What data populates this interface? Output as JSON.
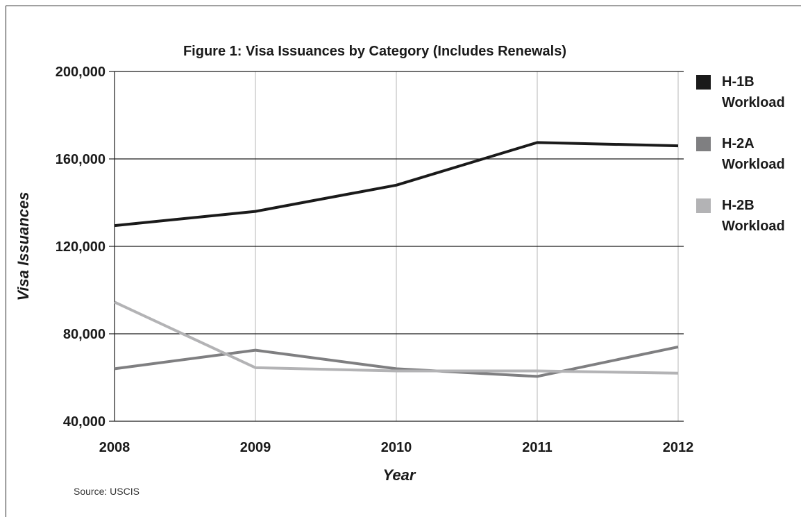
{
  "chart_data": {
    "type": "line",
    "title": "Figure 1: Visa Issuances by Category (Includes Renewals)",
    "xlabel": "Year",
    "ylabel": "Visa Issuances",
    "source": "Source: USCIS",
    "x": [
      "2008",
      "2009",
      "2010",
      "2011",
      "2012"
    ],
    "y_ticks": [
      200000,
      160000,
      120000,
      80000,
      40000
    ],
    "y_tick_labels": [
      "200,000",
      "160,000",
      "120,000",
      "80,000",
      "40,000"
    ],
    "ylim": [
      40000,
      200000
    ],
    "grid": true,
    "legend_position": "right",
    "series": [
      {
        "name": "H-1B Workload",
        "name_lines": [
          "H-1B",
          "Workload"
        ],
        "color": "#1a1a1a",
        "values": [
          129500,
          136000,
          148000,
          167500,
          166000
        ]
      },
      {
        "name": "H-2A Workload",
        "name_lines": [
          "H-2A",
          "Workload"
        ],
        "color": "#7f7f81",
        "values": [
          64000,
          72500,
          64000,
          60500,
          74000
        ]
      },
      {
        "name": "H-2B Workload",
        "name_lines": [
          "H-2B",
          "Workload"
        ],
        "color": "#b3b3b5",
        "values": [
          94500,
          64500,
          63000,
          63000,
          62000
        ]
      }
    ]
  }
}
